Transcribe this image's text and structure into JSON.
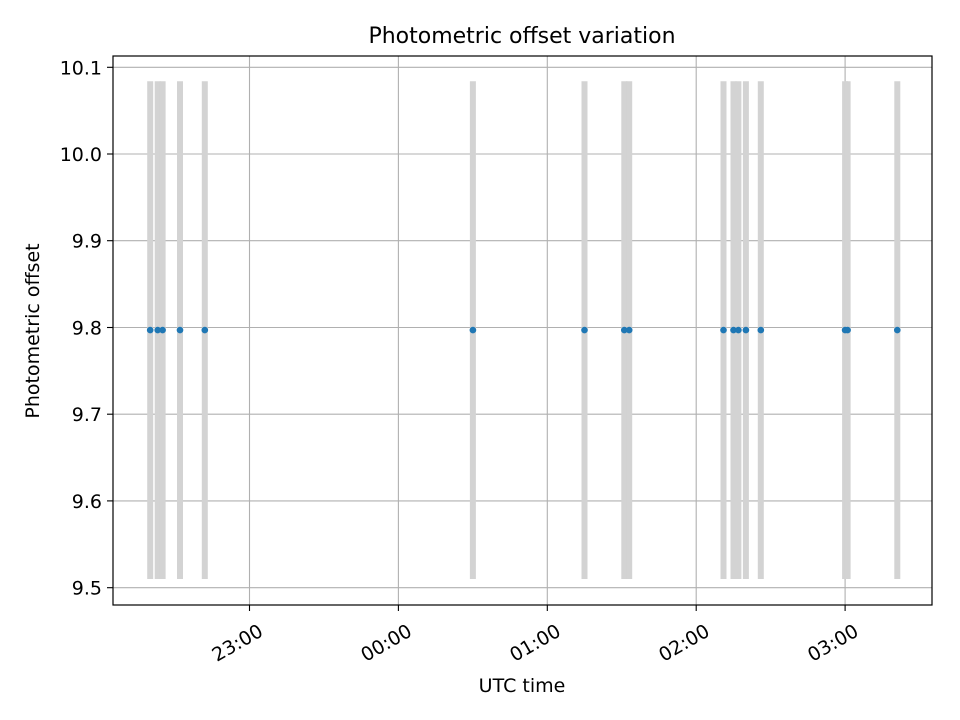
{
  "chart_data": {
    "type": "scatter",
    "title": "Photometric offset variation",
    "xlabel": "UTC time",
    "ylabel": "Photometric offset",
    "x_axis_type": "time",
    "xlim": [
      "22:05",
      "03:35"
    ],
    "ylim": [
      9.48,
      10.113
    ],
    "x_ticks": [
      "23:00",
      "00:00",
      "01:00",
      "02:00",
      "03:00"
    ],
    "y_ticks": [
      9.5,
      9.6,
      9.7,
      9.8,
      9.9,
      10.0,
      10.1
    ],
    "grid": true,
    "series": [
      {
        "points": [
          {
            "x": "22:20",
            "y": 9.797
          },
          {
            "x": "22:23",
            "y": 9.797
          },
          {
            "x": "22:25",
            "y": 9.797
          },
          {
            "x": "22:32",
            "y": 9.797
          },
          {
            "x": "22:42",
            "y": 9.797
          },
          {
            "x": "00:30",
            "y": 9.797
          },
          {
            "x": "01:15",
            "y": 9.797
          },
          {
            "x": "01:31",
            "y": 9.797
          },
          {
            "x": "01:33",
            "y": 9.797
          },
          {
            "x": "02:11",
            "y": 9.797
          },
          {
            "x": "02:15",
            "y": 9.797
          },
          {
            "x": "02:17",
            "y": 9.797
          },
          {
            "x": "02:20",
            "y": 9.797
          },
          {
            "x": "02:26",
            "y": 9.797
          },
          {
            "x": "03:00",
            "y": 9.797
          },
          {
            "x": "03:01",
            "y": 9.797
          },
          {
            "x": "03:21",
            "y": 9.797
          }
        ],
        "error_low": 9.51,
        "error_high": 10.084
      }
    ],
    "colors": {
      "points": "#1f77b4",
      "error_bars": "#d3d3d3",
      "grid": "#b0b0b0",
      "axes": "#000000"
    }
  }
}
